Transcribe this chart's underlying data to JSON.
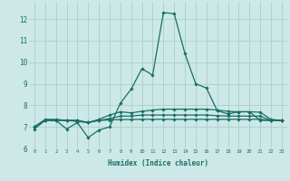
{
  "background_color": "#cce9e7",
  "grid_color": "#aacfcc",
  "line_color": "#1a6e64",
  "xlabel": "Humidex (Indice chaleur)",
  "xlim": [
    -0.5,
    23.5
  ],
  "ylim": [
    6,
    12.8
  ],
  "yticks": [
    6,
    7,
    8,
    9,
    10,
    11,
    12
  ],
  "xticks": [
    0,
    1,
    2,
    3,
    4,
    5,
    6,
    7,
    8,
    9,
    10,
    11,
    12,
    13,
    14,
    15,
    16,
    17,
    18,
    19,
    20,
    21,
    22,
    23
  ],
  "series": [
    {
      "x": [
        0,
        1,
        2,
        3,
        4,
        5,
        6,
        7,
        8,
        9,
        10,
        11,
        12,
        13,
        14,
        15,
        16,
        17,
        18,
        19,
        20,
        21,
        22,
        23
      ],
      "y": [
        6.9,
        7.3,
        7.3,
        6.9,
        7.2,
        6.5,
        6.85,
        7.0,
        8.1,
        8.75,
        9.7,
        9.4,
        12.3,
        12.25,
        10.4,
        9.0,
        8.8,
        7.75,
        7.6,
        7.7,
        7.7,
        7.3,
        7.3,
        7.3
      ],
      "marker": "D",
      "markersize": 1.8,
      "linewidth": 0.9
    },
    {
      "x": [
        0,
        1,
        2,
        3,
        4,
        5,
        6,
        7,
        8,
        9,
        10,
        11,
        12,
        13,
        14,
        15,
        16,
        17,
        18,
        19,
        20,
        21,
        22,
        23
      ],
      "y": [
        7.0,
        7.35,
        7.35,
        7.3,
        7.25,
        7.2,
        7.35,
        7.55,
        7.7,
        7.65,
        7.72,
        7.78,
        7.82,
        7.82,
        7.82,
        7.82,
        7.82,
        7.78,
        7.72,
        7.7,
        7.7,
        7.68,
        7.35,
        7.3
      ],
      "marker": "D",
      "markersize": 1.8,
      "linewidth": 0.9
    },
    {
      "x": [
        0,
        1,
        2,
        3,
        4,
        5,
        6,
        7,
        8,
        9,
        10,
        11,
        12,
        13,
        14,
        15,
        16,
        17,
        18,
        19,
        20,
        21,
        22,
        23
      ],
      "y": [
        7.0,
        7.3,
        7.3,
        7.3,
        7.3,
        7.2,
        7.3,
        7.32,
        7.34,
        7.34,
        7.35,
        7.35,
        7.35,
        7.35,
        7.35,
        7.35,
        7.35,
        7.35,
        7.35,
        7.35,
        7.35,
        7.35,
        7.3,
        7.3
      ],
      "marker": "D",
      "markersize": 1.8,
      "linewidth": 0.9
    },
    {
      "x": [
        0,
        1,
        2,
        3,
        4,
        5,
        6,
        7,
        8,
        9,
        10,
        11,
        12,
        13,
        14,
        15,
        16,
        17,
        18,
        19,
        20,
        21,
        22,
        23
      ],
      "y": [
        7.0,
        7.3,
        7.3,
        7.3,
        7.3,
        7.2,
        7.3,
        7.38,
        7.5,
        7.5,
        7.55,
        7.55,
        7.55,
        7.55,
        7.55,
        7.55,
        7.55,
        7.52,
        7.5,
        7.5,
        7.5,
        7.5,
        7.3,
        7.3
      ],
      "marker": "D",
      "markersize": 1.8,
      "linewidth": 0.9
    }
  ]
}
